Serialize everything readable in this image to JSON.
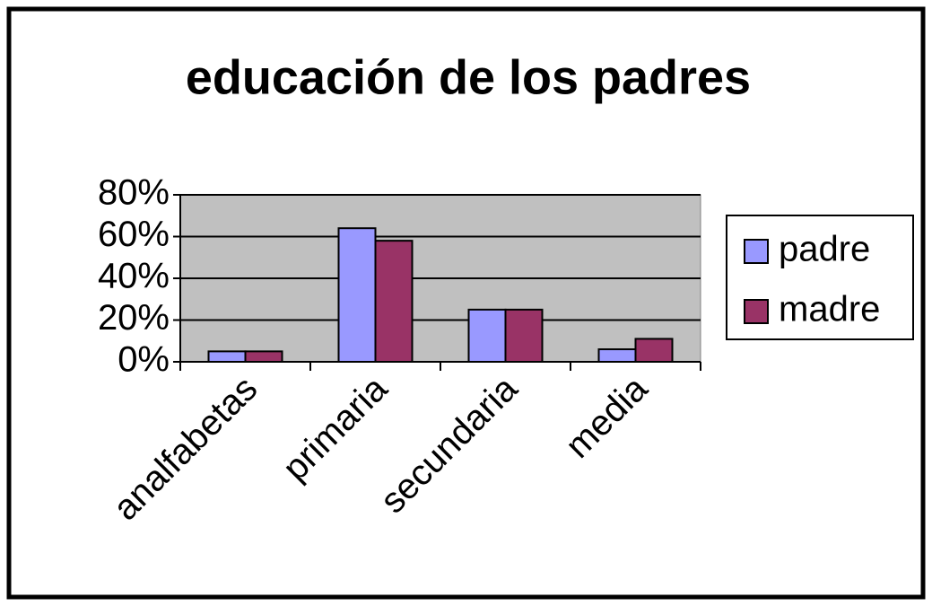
{
  "chart_data": {
    "type": "bar",
    "title": "educación de los padres",
    "categories": [
      "analfabetas",
      "primaria",
      "secundaria",
      "media"
    ],
    "series": [
      {
        "name": "padre",
        "color": "#9999ff",
        "values": [
          5,
          64,
          25,
          6
        ]
      },
      {
        "name": "madre",
        "color": "#993366",
        "values": [
          5,
          58,
          25,
          11
        ]
      }
    ],
    "ylim": [
      0,
      80
    ],
    "yticks": [
      {
        "value": 0,
        "label": "0%"
      },
      {
        "value": 20,
        "label": "20%"
      },
      {
        "value": 40,
        "label": "40%"
      },
      {
        "value": 60,
        "label": "60%"
      },
      {
        "value": 80,
        "label": "80%"
      }
    ],
    "grid": true,
    "legend": "right"
  }
}
